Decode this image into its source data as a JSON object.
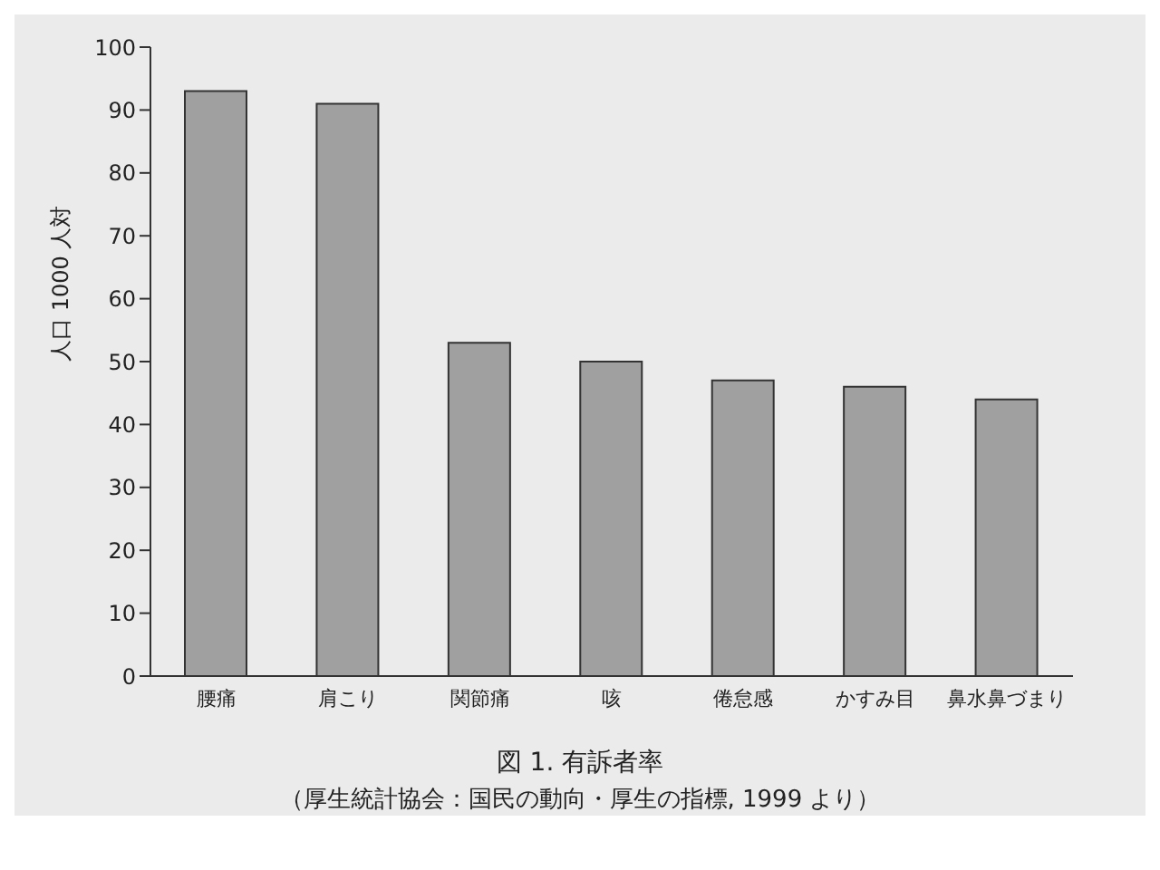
{
  "chart_data": {
    "type": "bar",
    "title": "図 1. 有訴者率",
    "annotations": [
      "（厚生統計協会：国民の動向・厚生の指標, 1999 より）"
    ],
    "ylabel": "人口 1000 人対",
    "categories": [
      "腰痛",
      "肩こり",
      "関節痛",
      "咳",
      "倦怠感",
      "かすみ目",
      "鼻水鼻づまり"
    ],
    "values": [
      93,
      91,
      53,
      50,
      47,
      46,
      44
    ],
    "color": "#a0a0a0",
    "ylim": [
      0,
      100
    ],
    "yticks": [
      0,
      10,
      20,
      30,
      40,
      50,
      60,
      70,
      80,
      90,
      100
    ],
    "grid": false
  }
}
